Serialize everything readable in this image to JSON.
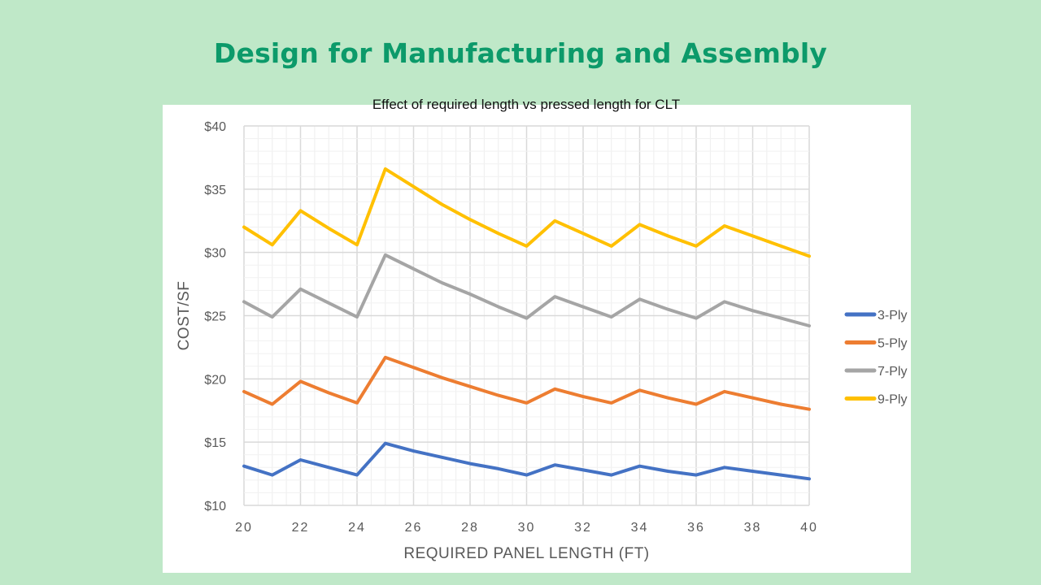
{
  "slide": {
    "title": "Design for Manufacturing and Assembly"
  },
  "chart_data": {
    "type": "line",
    "title": "Effect of required length vs pressed length for CLT",
    "xlabel": "REQUIRED PANEL LENGTH (FT)",
    "ylabel": "COST/SF",
    "xlim": [
      20,
      40
    ],
    "ylim": [
      10,
      40
    ],
    "xticks": [
      20,
      22,
      24,
      26,
      28,
      30,
      32,
      34,
      36,
      38,
      40
    ],
    "xtick_labels": [
      "20",
      "22",
      "24",
      "26",
      "28",
      "30",
      "32",
      "34",
      "36",
      "38",
      "40"
    ],
    "yticks": [
      10,
      15,
      20,
      25,
      30,
      35,
      40
    ],
    "ytick_labels": [
      "$10",
      "$15",
      "$20",
      "$25",
      "$30",
      "$35",
      "$40"
    ],
    "grid": true,
    "legend_position": "right",
    "x": [
      20,
      21,
      22,
      23,
      24,
      25,
      26,
      27,
      28,
      29,
      30,
      31,
      32,
      33,
      34,
      35,
      36,
      37,
      38,
      39,
      40
    ],
    "series": [
      {
        "name": "3-Ply",
        "color": "#4472c4",
        "values": [
          13.1,
          12.4,
          13.6,
          13.0,
          12.4,
          14.9,
          14.3,
          13.8,
          13.3,
          12.9,
          12.4,
          13.2,
          12.8,
          12.4,
          13.1,
          12.7,
          12.4,
          13.0,
          12.7,
          12.4,
          12.1
        ]
      },
      {
        "name": "5-Ply",
        "color": "#ed7d31",
        "values": [
          19.0,
          18.0,
          19.8,
          18.9,
          18.1,
          21.7,
          20.9,
          20.1,
          19.4,
          18.7,
          18.1,
          19.2,
          18.6,
          18.1,
          19.1,
          18.5,
          18.0,
          19.0,
          18.5,
          18.0,
          17.6
        ]
      },
      {
        "name": "7-Ply",
        "color": "#a5a5a5",
        "values": [
          26.1,
          24.9,
          27.1,
          26.0,
          24.9,
          29.8,
          28.7,
          27.6,
          26.7,
          25.7,
          24.8,
          26.5,
          25.7,
          24.9,
          26.3,
          25.5,
          24.8,
          26.1,
          25.4,
          24.8,
          24.2
        ]
      },
      {
        "name": "9-Ply",
        "color": "#ffc000",
        "values": [
          32.0,
          30.6,
          33.3,
          31.9,
          30.6,
          36.6,
          35.2,
          33.8,
          32.6,
          31.5,
          30.5,
          32.5,
          31.5,
          30.5,
          32.2,
          31.3,
          30.5,
          32.1,
          31.3,
          30.5,
          29.7
        ]
      }
    ]
  }
}
